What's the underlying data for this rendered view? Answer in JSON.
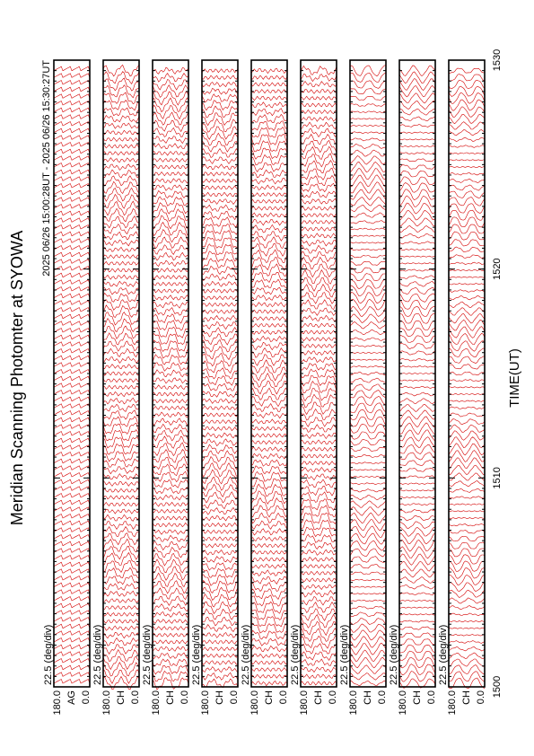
{
  "chart_data": {
    "type": "scan-panels",
    "title": "Meridian Scanning Photomter at SYOWA",
    "subtitle": "2025 06/26 15:00:28UT - 2025 06/26 15:30:27UT",
    "x_label": "TIME(UT)",
    "xlim": [
      1500,
      1530
    ],
    "xticks": [
      1500,
      1510,
      1520,
      1530
    ],
    "panel_scale": "22.5 (deg/div)",
    "panel_ylim": [
      {
        "value": 0,
        "label": "0.0"
      },
      {
        "value": 180,
        "label": "180.0"
      }
    ],
    "panels": [
      "AG",
      "CH",
      "CH",
      "CH",
      "CH",
      "CH",
      "CH",
      "CH",
      "CH"
    ],
    "color": "#d40000"
  }
}
